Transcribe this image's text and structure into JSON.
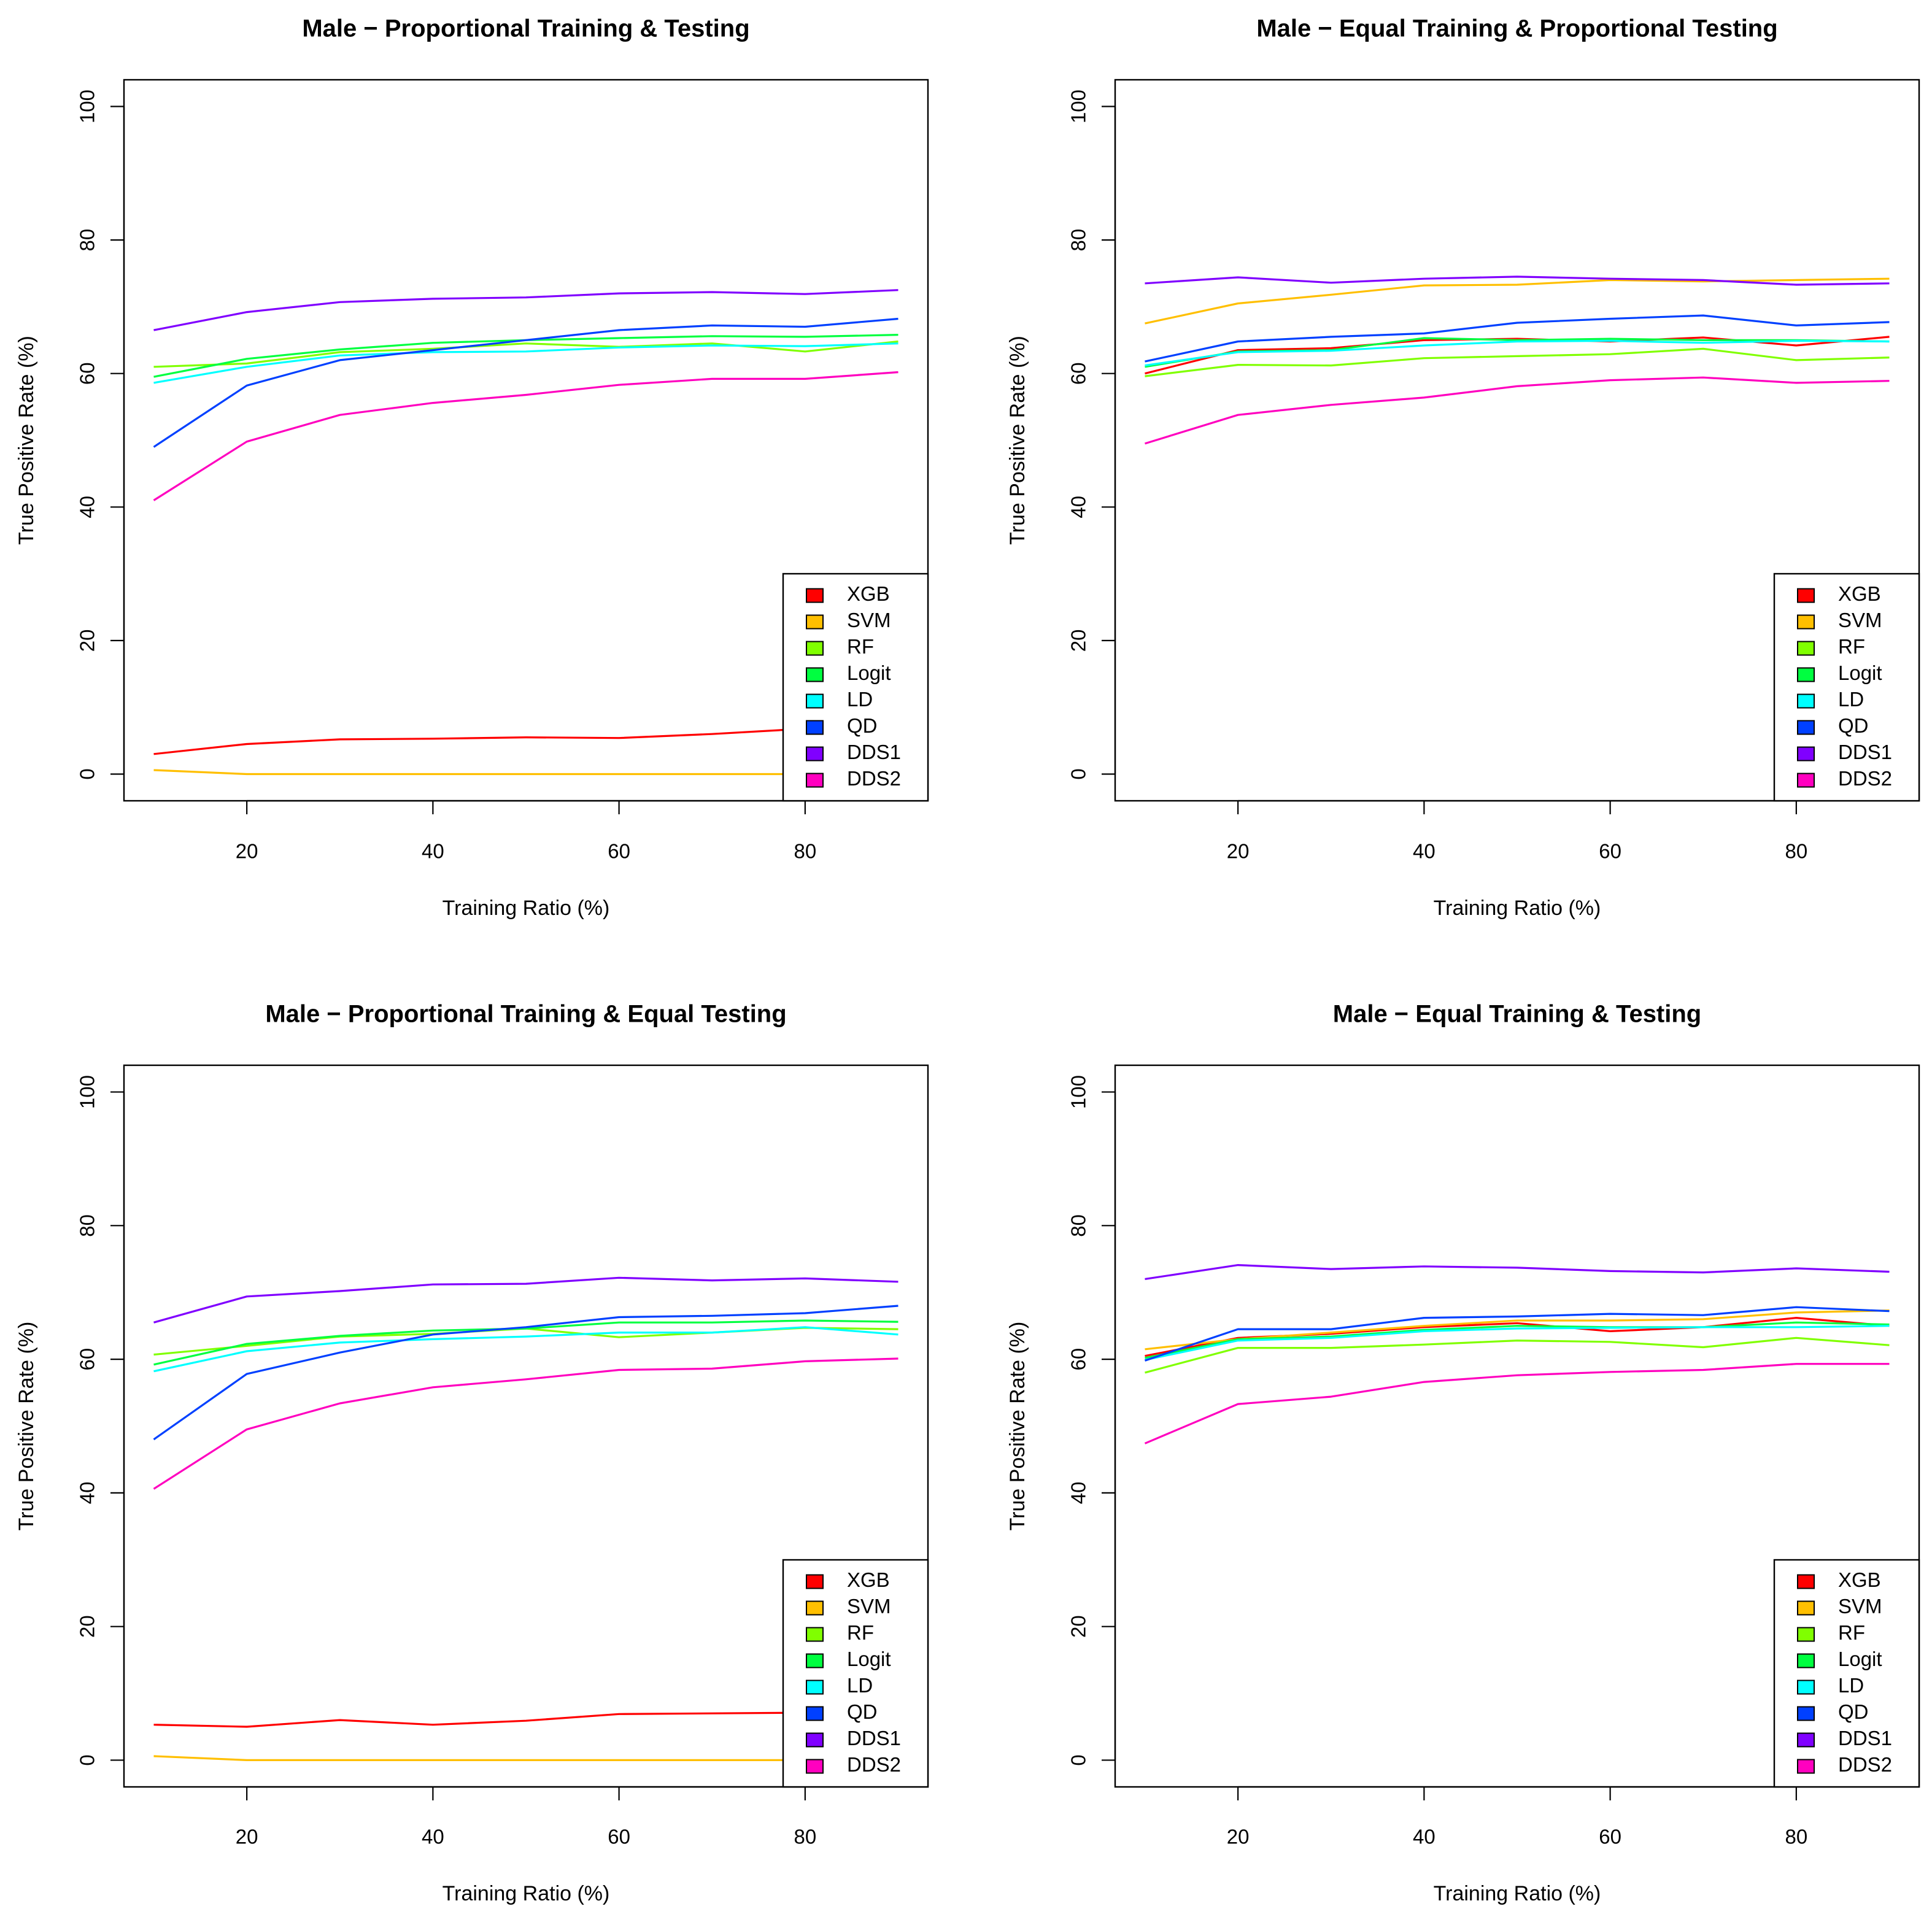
{
  "legend_order": [
    "XGB",
    "SVM",
    "RF",
    "Logit",
    "LD",
    "QD",
    "DDS1",
    "DDS2"
  ],
  "series_colors": {
    "XGB": "#FF0000",
    "SVM": "#FFBF00",
    "RF": "#80FF00",
    "Logit": "#00FF40",
    "LD": "#00FFFF",
    "QD": "#0040FF",
    "DDS1": "#8000FF",
    "DDS2": "#FF00BF"
  },
  "chart_data": [
    {
      "type": "line",
      "title": "Male − Proportional Training & Testing",
      "xlabel": "Training Ratio (%)",
      "ylabel": "True Positive Rate (%)",
      "x": [
        10,
        20,
        30,
        40,
        50,
        60,
        70,
        80,
        90
      ],
      "xticks": [
        20,
        40,
        60,
        80
      ],
      "yticks": [
        0,
        20,
        40,
        60,
        80,
        100
      ],
      "xlim": [
        6.8,
        93.2
      ],
      "ylim": [
        -4,
        104
      ],
      "grid": false,
      "legend": "bottom-right",
      "series": [
        {
          "name": "XGB",
          "values": [
            3.0,
            4.5,
            5.2,
            5.3,
            5.5,
            5.4,
            6.0,
            6.8,
            7.0
          ]
        },
        {
          "name": "SVM",
          "values": [
            0.6,
            0.0,
            0.0,
            0.0,
            0.0,
            0.0,
            0.0,
            0.0,
            0.0
          ]
        },
        {
          "name": "RF",
          "values": [
            61.0,
            61.5,
            63.2,
            63.7,
            64.5,
            64.0,
            64.5,
            63.3,
            64.8
          ]
        },
        {
          "name": "Logit",
          "values": [
            59.5,
            62.2,
            63.6,
            64.6,
            65.0,
            65.3,
            65.6,
            65.5,
            65.8
          ]
        },
        {
          "name": "LD",
          "values": [
            58.6,
            61.0,
            62.7,
            63.2,
            63.3,
            63.9,
            64.2,
            64.1,
            64.5
          ]
        },
        {
          "name": "QD",
          "values": [
            49.0,
            58.2,
            62.0,
            63.5,
            65.0,
            66.5,
            67.2,
            67.0,
            68.2
          ]
        },
        {
          "name": "DDS1",
          "values": [
            66.5,
            69.2,
            70.7,
            71.2,
            71.4,
            72.0,
            72.2,
            71.9,
            72.5
          ]
        },
        {
          "name": "DDS2",
          "values": [
            41.0,
            49.8,
            53.8,
            55.6,
            56.8,
            58.3,
            59.2,
            59.2,
            60.2
          ]
        }
      ]
    },
    {
      "type": "line",
      "title": "Male − Equal Training & Proportional Testing",
      "xlabel": "Training Ratio (%)",
      "ylabel": "True Positive Rate (%)",
      "x": [
        10,
        20,
        30,
        40,
        50,
        60,
        70,
        80,
        90
      ],
      "xticks": [
        20,
        40,
        60,
        80
      ],
      "yticks": [
        0,
        20,
        40,
        60,
        80,
        100
      ],
      "xlim": [
        6.8,
        93.2
      ],
      "ylim": [
        -4,
        104
      ],
      "grid": false,
      "legend": "bottom-right",
      "series": [
        {
          "name": "XGB",
          "values": [
            60.0,
            63.5,
            63.8,
            65.0,
            65.2,
            64.8,
            65.4,
            64.2,
            65.5
          ]
        },
        {
          "name": "SVM",
          "values": [
            67.5,
            70.5,
            71.8,
            73.2,
            73.3,
            74.0,
            73.8,
            74.0,
            74.2
          ]
        },
        {
          "name": "RF",
          "values": [
            59.6,
            61.3,
            61.2,
            62.3,
            62.6,
            62.9,
            63.7,
            62.0,
            62.4
          ]
        },
        {
          "name": "Logit",
          "values": [
            61.0,
            63.3,
            63.5,
            65.3,
            65.0,
            65.2,
            65.0,
            65.0,
            64.8
          ]
        },
        {
          "name": "LD",
          "values": [
            61.2,
            63.2,
            63.4,
            64.2,
            64.8,
            64.9,
            64.6,
            64.9,
            64.8
          ]
        },
        {
          "name": "QD",
          "values": [
            61.8,
            64.8,
            65.5,
            66.0,
            67.6,
            68.2,
            68.7,
            67.2,
            67.7
          ]
        },
        {
          "name": "DDS1",
          "values": [
            73.5,
            74.4,
            73.6,
            74.2,
            74.5,
            74.2,
            74.0,
            73.3,
            73.5
          ]
        },
        {
          "name": "DDS2",
          "values": [
            49.5,
            53.8,
            55.3,
            56.4,
            58.1,
            59.0,
            59.4,
            58.6,
            58.9
          ]
        }
      ]
    },
    {
      "type": "line",
      "title": "Male − Proportional Training & Equal Testing",
      "xlabel": "Training Ratio (%)",
      "ylabel": "True Positive Rate (%)",
      "x": [
        10,
        20,
        30,
        40,
        50,
        60,
        70,
        80,
        90
      ],
      "xticks": [
        20,
        40,
        60,
        80
      ],
      "yticks": [
        0,
        20,
        40,
        60,
        80,
        100
      ],
      "xlim": [
        6.8,
        93.2
      ],
      "ylim": [
        -4,
        104
      ],
      "grid": false,
      "legend": "bottom-right",
      "series": [
        {
          "name": "XGB",
          "values": [
            5.3,
            5.0,
            6.0,
            5.3,
            5.9,
            6.9,
            7.0,
            7.1,
            7.3
          ]
        },
        {
          "name": "SVM",
          "values": [
            0.6,
            0.0,
            0.0,
            0.0,
            0.0,
            0.0,
            0.0,
            0.0,
            0.0
          ]
        },
        {
          "name": "RF",
          "values": [
            60.7,
            62.0,
            63.4,
            63.8,
            64.6,
            63.3,
            64.0,
            64.7,
            64.5
          ]
        },
        {
          "name": "Logit",
          "values": [
            59.2,
            62.3,
            63.5,
            64.3,
            64.6,
            65.5,
            65.5,
            65.8,
            65.6
          ]
        },
        {
          "name": "LD",
          "values": [
            58.2,
            61.2,
            62.5,
            63.0,
            63.4,
            64.0,
            64.0,
            64.8,
            63.7
          ]
        },
        {
          "name": "QD",
          "values": [
            48.0,
            57.8,
            61.0,
            63.7,
            64.8,
            66.3,
            66.5,
            66.9,
            68.0
          ]
        },
        {
          "name": "DDS1",
          "values": [
            65.5,
            69.4,
            70.2,
            71.2,
            71.3,
            72.2,
            71.8,
            72.1,
            71.6
          ]
        },
        {
          "name": "DDS2",
          "values": [
            40.6,
            49.5,
            53.4,
            55.8,
            57.0,
            58.4,
            58.6,
            59.7,
            60.1
          ]
        }
      ]
    },
    {
      "type": "line",
      "title": "Male − Equal Training & Testing",
      "xlabel": "Training Ratio (%)",
      "ylabel": "True Positive Rate (%)",
      "x": [
        10,
        20,
        30,
        40,
        50,
        60,
        70,
        80,
        90
      ],
      "xticks": [
        20,
        40,
        60,
        80
      ],
      "yticks": [
        0,
        20,
        40,
        60,
        80,
        100
      ],
      "xlim": [
        6.8,
        93.2
      ],
      "ylim": [
        -4,
        104
      ],
      "grid": false,
      "legend": "bottom-right",
      "series": [
        {
          "name": "XGB",
          "values": [
            60.5,
            63.2,
            63.8,
            64.8,
            65.4,
            64.2,
            64.8,
            66.2,
            65.0
          ]
        },
        {
          "name": "SVM",
          "values": [
            61.5,
            63.0,
            64.0,
            65.0,
            65.8,
            65.8,
            66.0,
            67.0,
            67.3
          ]
        },
        {
          "name": "RF",
          "values": [
            58.0,
            61.7,
            61.7,
            62.2,
            62.8,
            62.6,
            61.8,
            63.2,
            62.1
          ]
        },
        {
          "name": "Logit",
          "values": [
            60.2,
            63.0,
            63.4,
            64.4,
            65.0,
            64.8,
            64.8,
            65.5,
            65.2
          ]
        },
        {
          "name": "LD",
          "values": [
            59.9,
            62.8,
            63.2,
            64.2,
            64.6,
            64.7,
            64.8,
            64.8,
            65.0
          ]
        },
        {
          "name": "QD",
          "values": [
            59.8,
            64.5,
            64.5,
            66.2,
            66.4,
            66.8,
            66.6,
            67.8,
            67.2
          ]
        },
        {
          "name": "DDS1",
          "values": [
            72.0,
            74.1,
            73.5,
            73.9,
            73.7,
            73.2,
            73.0,
            73.6,
            73.1
          ]
        },
        {
          "name": "DDS2",
          "values": [
            47.4,
            53.3,
            54.4,
            56.6,
            57.6,
            58.1,
            58.4,
            59.3,
            59.3
          ]
        }
      ]
    }
  ]
}
